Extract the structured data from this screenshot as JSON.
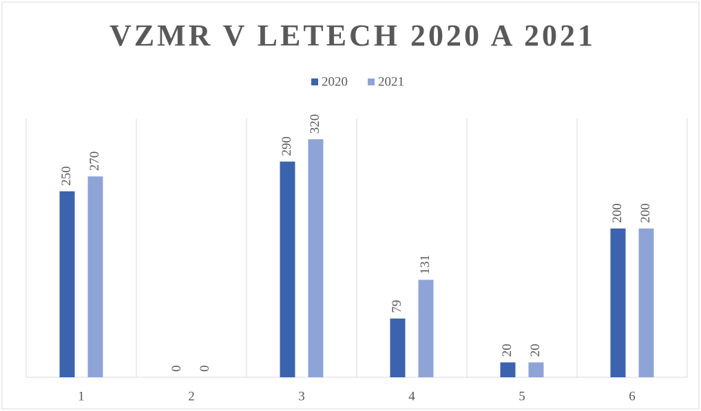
{
  "chart_data": {
    "type": "bar",
    "title": "VZMR V LETECH 2020 A 2021",
    "categories": [
      "1",
      "2",
      "3",
      "4",
      "5",
      "6"
    ],
    "series": [
      {
        "name": "2020",
        "color": "#3c63ae",
        "values": [
          250,
          0,
          290,
          79,
          20,
          200
        ]
      },
      {
        "name": "2021",
        "color": "#8fa4d6",
        "values": [
          270,
          0,
          320,
          131,
          20,
          200
        ]
      }
    ],
    "ylim": [
      0,
      348
    ],
    "legend": "top",
    "data_labels": true
  }
}
